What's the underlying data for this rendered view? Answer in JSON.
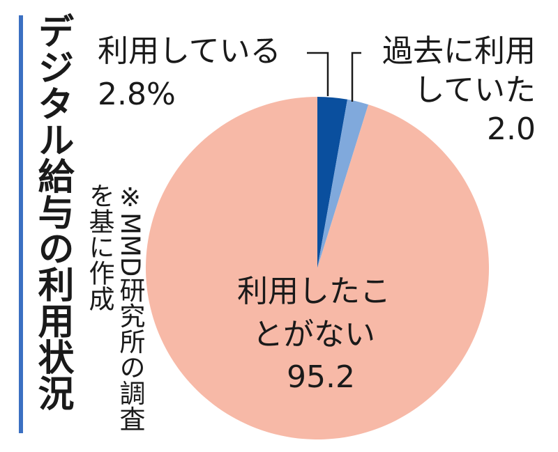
{
  "chart_data": {
    "type": "pie",
    "title": "デジタル給与の利用状況",
    "note": "※MMD研究所の調査を基に作成",
    "categories": [
      "利用している",
      "過去に利用していた",
      "利用したことがない"
    ],
    "values": [
      2.8,
      2.0,
      95.2
    ],
    "value_labels": [
      "2.8%",
      "2.0",
      "95.2"
    ],
    "colors": [
      "#0a4f9e",
      "#80a9dc",
      "#f7b9a7"
    ],
    "accent_color": "#3b70c2"
  }
}
